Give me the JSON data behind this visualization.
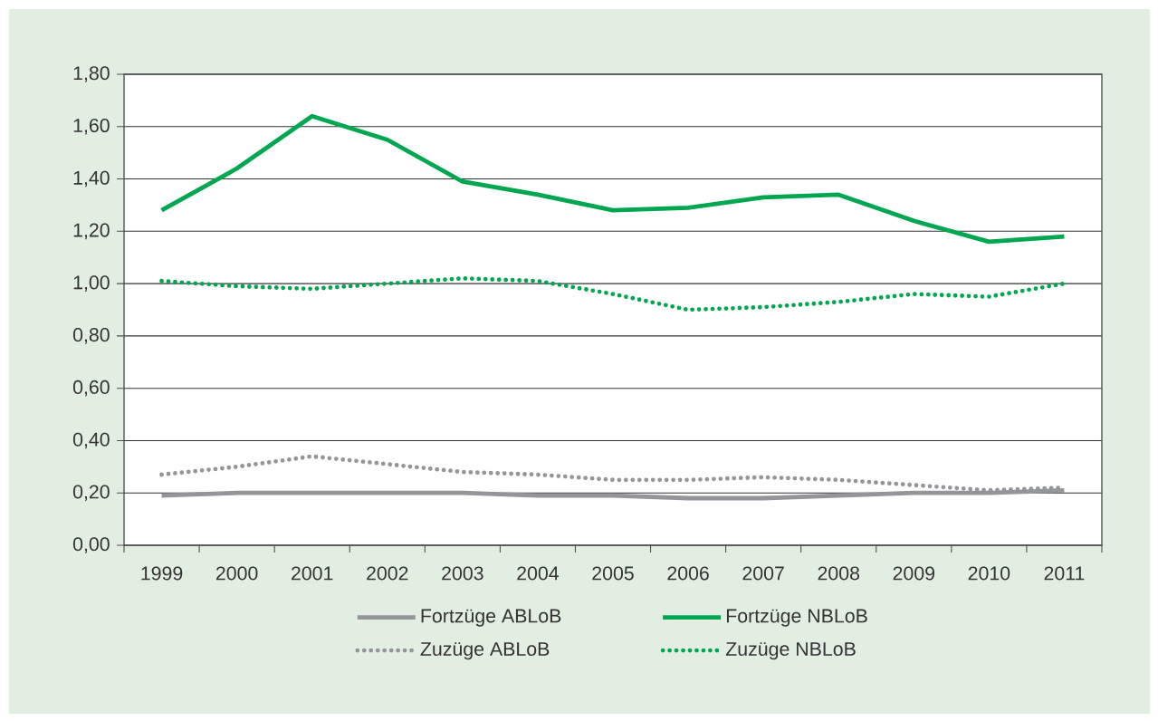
{
  "chart_data": {
    "type": "line",
    "categories": [
      "1999",
      "2000",
      "2001",
      "2002",
      "2003",
      "2004",
      "2005",
      "2006",
      "2007",
      "2008",
      "2009",
      "2010",
      "2011"
    ],
    "series": [
      {
        "name": "Fortzüge ABLoB",
        "color": "#939598",
        "line_style": "solid",
        "values": [
          0.19,
          0.2,
          0.2,
          0.2,
          0.2,
          0.19,
          0.19,
          0.18,
          0.18,
          0.19,
          0.2,
          0.2,
          0.21
        ]
      },
      {
        "name": "Fortzüge NBLoB",
        "color": "#00a650",
        "line_style": "solid",
        "values": [
          1.28,
          1.44,
          1.64,
          1.55,
          1.39,
          1.34,
          1.28,
          1.29,
          1.33,
          1.34,
          1.24,
          1.16,
          1.18
        ]
      },
      {
        "name": "Zuzüge ABLoB",
        "color": "#939598",
        "line_style": "dotted",
        "values": [
          0.27,
          0.3,
          0.34,
          0.31,
          0.28,
          0.27,
          0.25,
          0.25,
          0.26,
          0.25,
          0.23,
          0.21,
          0.22
        ]
      },
      {
        "name": "Zuzüge NBLoB",
        "color": "#00a650",
        "line_style": "dotted",
        "values": [
          1.01,
          0.99,
          0.98,
          1.0,
          1.02,
          1.01,
          0.96,
          0.9,
          0.91,
          0.93,
          0.96,
          0.95,
          1.0
        ]
      }
    ],
    "ylim": [
      0,
      1.8
    ],
    "yticks": [
      {
        "value": 0,
        "label": "0,00"
      },
      {
        "value": 0.2,
        "label": "0,20"
      },
      {
        "value": 0.4,
        "label": "0,40"
      },
      {
        "value": 0.6,
        "label": "0,60"
      },
      {
        "value": 0.8,
        "label": "0,80"
      },
      {
        "value": 1.0,
        "label": "1,00"
      },
      {
        "value": 1.2,
        "label": "1,20"
      },
      {
        "value": 1.4,
        "label": "1,40"
      },
      {
        "value": 1.6,
        "label": "1,60"
      },
      {
        "value": 1.8,
        "label": "1,80"
      }
    ],
    "grid": "y",
    "legend": "bottom",
    "marker": "none"
  }
}
